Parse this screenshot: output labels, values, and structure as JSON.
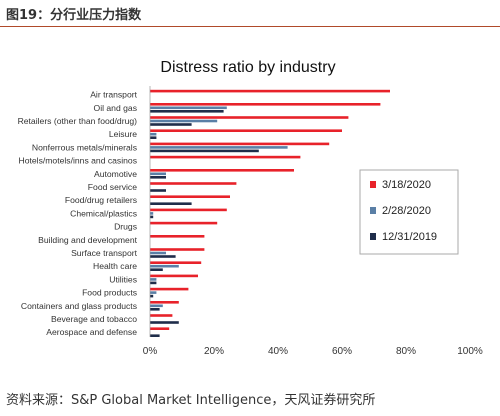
{
  "figure": {
    "header": "图19：分行业压力指数",
    "source": "资料来源：S&P Global Market Intelligence，天风证券研究所"
  },
  "colors": {
    "series_1": "#e8222a",
    "series_2": "#5a7fa6",
    "series_3": "#1f2d4a",
    "axis_text": "#333333",
    "header_rule": "#b04a2a"
  },
  "chart_data": {
    "type": "bar",
    "orientation": "horizontal",
    "title": "Distress ratio by industry",
    "xlabel": "",
    "ylabel": "",
    "xlim": [
      0,
      100
    ],
    "x_ticks": [
      "0%",
      "20%",
      "40%",
      "60%",
      "80%",
      "100%"
    ],
    "grid": false,
    "legend_position": "right",
    "categories": [
      "Air transport",
      "Oil and gas",
      "Retailers (other than food/drug)",
      "Leisure",
      "Nonferrous metals/minerals",
      "Hotels/motels/inns and casinos",
      "Automotive",
      "Food service",
      "Food/drug retailers",
      "Chemical/plastics",
      "Drugs",
      "Building and development",
      "Surface transport",
      "Health care",
      "Utilities",
      "Food products",
      "Containers and glass products",
      "Beverage and tobacco",
      "Aerospace and defense"
    ],
    "series": [
      {
        "name": "3/18/2020",
        "values": [
          75,
          72,
          62,
          60,
          56,
          47,
          45,
          27,
          25,
          24,
          21,
          17,
          17,
          16,
          15,
          12,
          9,
          7,
          6
        ]
      },
      {
        "name": "2/28/2020",
        "values": [
          0,
          24,
          21,
          2,
          43,
          0,
          5,
          0,
          0,
          1,
          0,
          0,
          5,
          9,
          2,
          2,
          4,
          0,
          0
        ]
      },
      {
        "name": "12/31/2019",
        "values": [
          0,
          23,
          13,
          2,
          34,
          0,
          5,
          5,
          13,
          1,
          0,
          0,
          8,
          4,
          2,
          1,
          3,
          9,
          3
        ]
      }
    ]
  }
}
